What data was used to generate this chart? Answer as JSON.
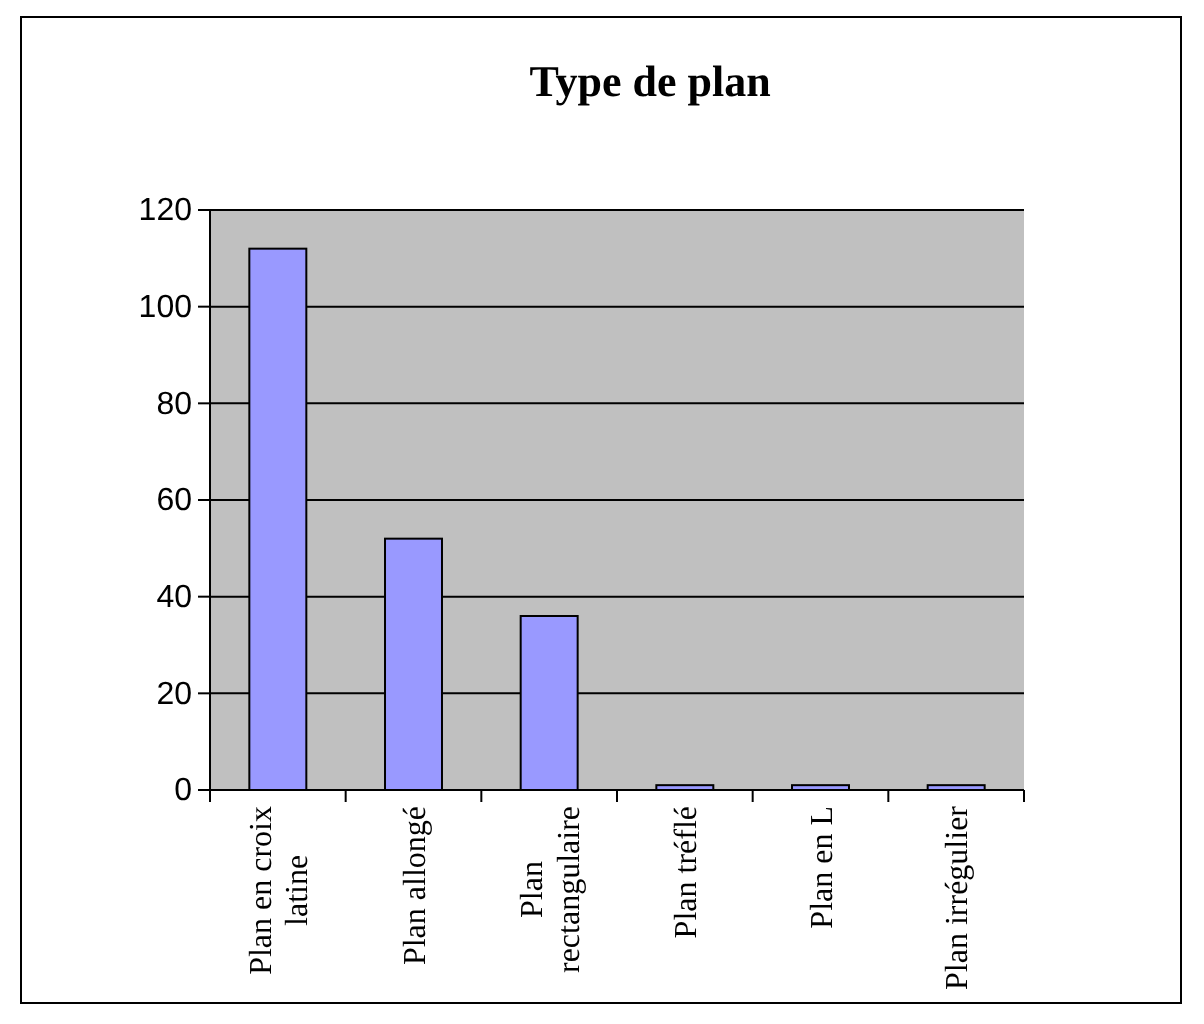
{
  "chart_data": {
    "type": "bar",
    "title": "Type de plan",
    "categories": [
      "Plan en croix latine",
      "Plan allongé",
      "Plan rectangulaire",
      "Plan tréflé",
      "Plan en L",
      "Plan irrégulier"
    ],
    "values": [
      112,
      52,
      36,
      1,
      1,
      1
    ],
    "color": "#9999ff",
    "ylim": [
      0,
      120
    ],
    "yticks": [
      0,
      20,
      40,
      60,
      80,
      100,
      120
    ],
    "grid": "y"
  }
}
